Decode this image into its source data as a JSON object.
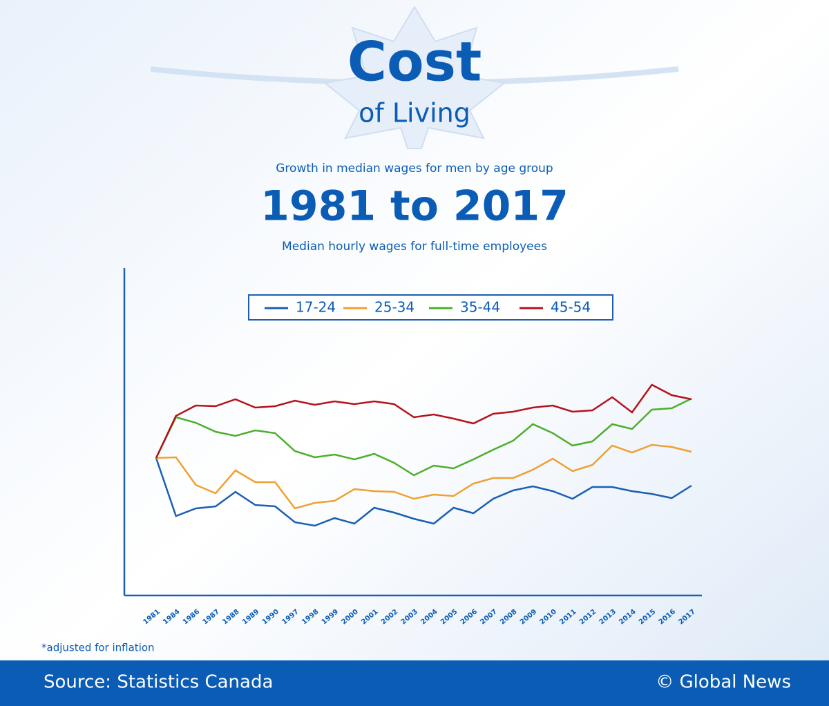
{
  "chart_data": {
    "type": "line",
    "logo": {
      "line1": "Cost",
      "line2": "of Living"
    },
    "subtitle": "Growth in median wages for men by age group",
    "title": "1981 to 2017",
    "description": "Median hourly wages for full-time employees",
    "footnote": "*adjusted for inflation",
    "source": "Source: Statistics Canada",
    "credit": "© Global News",
    "legend": "top",
    "grid": false,
    "ylim": [
      -19.9,
      27.5
    ],
    "categories": [
      "1981",
      "1984",
      "1986",
      "1987",
      "1988",
      "1989",
      "1990",
      "1997",
      "1998",
      "1999",
      "2000",
      "2001",
      "2002",
      "2003",
      "2004",
      "2005",
      "2006",
      "2007",
      "2008",
      "2009",
      "2010",
      "2011",
      "2012",
      "2013",
      "2014",
      "2015",
      "2016",
      "2017"
    ],
    "series": [
      {
        "name": "17-24",
        "color": "#1a5fb4",
        "values": [
          0,
          -8.4,
          -7.3,
          -7,
          -4.9,
          -6.8,
          -7,
          -9.3,
          -9.8,
          -8.7,
          -9.5,
          -7.2,
          -7.9,
          -8.8,
          -9.5,
          -7.2,
          -8,
          -5.9,
          -4.7,
          -4.1,
          -4.8,
          -5.9,
          -4.2,
          -4.2,
          -4.8,
          -5.2,
          -5.8,
          -4
        ]
      },
      {
        "name": "25-34",
        "color": "#f0a030",
        "values": [
          0,
          0.1,
          -3.9,
          -5.1,
          -1.8,
          -3.5,
          -3.5,
          -7.3,
          -6.5,
          -6.2,
          -4.5,
          -4.8,
          -4.9,
          -5.9,
          -5.3,
          -5.5,
          -3.7,
          -2.9,
          -2.9,
          -1.7,
          -0.1,
          -1.9,
          -1,
          1.8,
          0.8,
          1.9,
          1.6,
          0.9
        ]
      },
      {
        "name": "35-44",
        "color": "#4caf2a",
        "values": [
          0,
          5.9,
          5.1,
          3.8,
          3.2,
          4,
          3.6,
          1,
          0.1,
          0.5,
          -0.2,
          0.6,
          -0.7,
          -2.5,
          -1.1,
          -1.5,
          -0.2,
          1.2,
          2.5,
          4.9,
          3.6,
          1.8,
          2.4,
          4.9,
          4.2,
          7,
          7.2,
          8.6
        ]
      },
      {
        "name": "45-54",
        "color": "#b5121b",
        "values": [
          0,
          6.1,
          7.6,
          7.5,
          8.5,
          7.3,
          7.5,
          8.3,
          7.7,
          8.2,
          7.8,
          8.2,
          7.8,
          5.9,
          6.3,
          5.7,
          5,
          6.4,
          6.7,
          7.3,
          7.6,
          6.7,
          6.9,
          8.8,
          6.6,
          10.6,
          9.1,
          8.5
        ]
      }
    ]
  }
}
